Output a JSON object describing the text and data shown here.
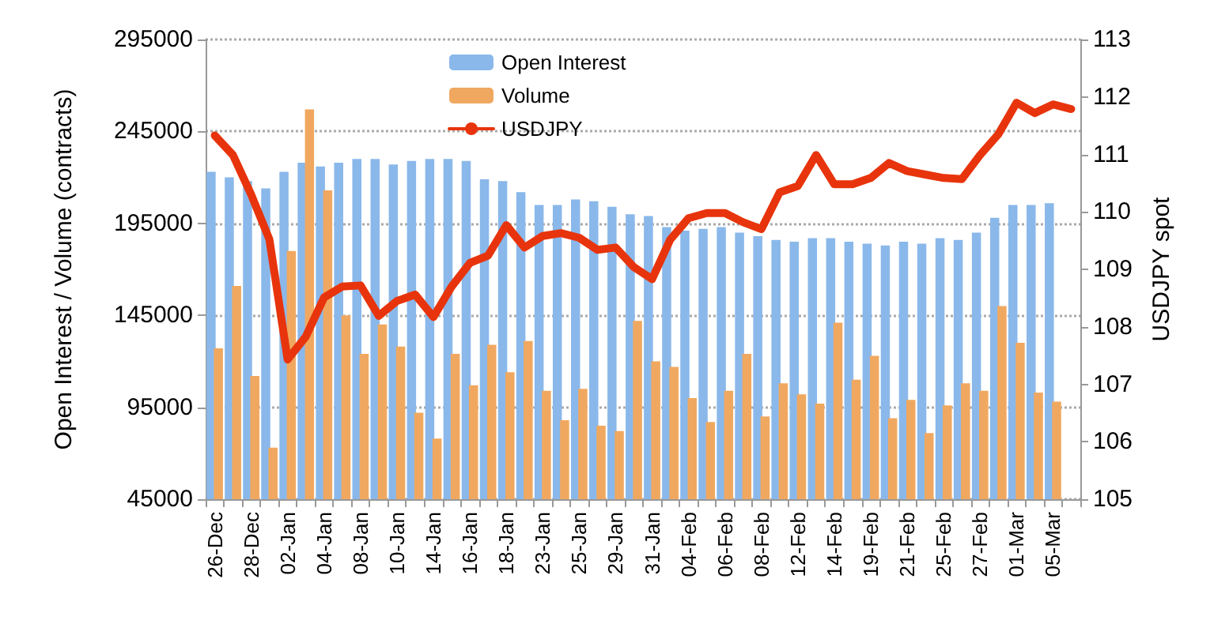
{
  "chart_data": {
    "type": "bar",
    "ylabel": "Open Interest / Volume (contracts)",
    "y2label": "USDJPY spot",
    "categories": [
      "26-Dec",
      null,
      "28-Dec",
      null,
      "02-Jan",
      null,
      "04-Jan",
      null,
      "08-Jan",
      null,
      "10-Jan",
      null,
      "14-Jan",
      null,
      "16-Jan",
      null,
      "18-Jan",
      null,
      "23-Jan",
      null,
      "25-Jan",
      null,
      "29-Jan",
      null,
      "31-Jan",
      null,
      "04-Feb",
      null,
      "06-Feb",
      null,
      "08-Feb",
      null,
      "12-Feb",
      null,
      "14-Feb",
      null,
      "19-Feb",
      null,
      "21-Feb",
      null,
      "25-Feb",
      null,
      "27-Feb",
      null,
      "01-Mar",
      null,
      "05-Mar",
      null
    ],
    "series": [
      {
        "name": "Open Interest",
        "color": "#8ab8ea",
        "values": [
          223000,
          220000,
          218000,
          214000,
          223000,
          228000,
          226000,
          228000,
          230000,
          230000,
          227000,
          229000,
          230000,
          230000,
          229000,
          219000,
          218000,
          212000,
          205000,
          205000,
          208000,
          207000,
          204000,
          200000,
          199000,
          193000,
          191000,
          192000,
          193000,
          190000,
          188000,
          186000,
          185000,
          187000,
          187000,
          185000,
          184000,
          183000,
          185000,
          184000,
          187000,
          186000,
          190000,
          198000,
          205000,
          205000,
          206000,
          null
        ]
      },
      {
        "name": "Volume",
        "color": "#f0a860",
        "values": [
          127000,
          161000,
          112000,
          73000,
          180000,
          257000,
          213000,
          145000,
          124000,
          140000,
          128000,
          92000,
          78000,
          124000,
          107000,
          129000,
          114000,
          131000,
          104000,
          88000,
          105000,
          85000,
          82000,
          142000,
          120000,
          117000,
          100000,
          87000,
          104000,
          124000,
          90000,
          108000,
          102000,
          97000,
          141000,
          110000,
          123000,
          89000,
          99000,
          81000,
          96000,
          108000,
          104000,
          150000,
          130000,
          103000,
          98000,
          null
        ]
      },
      {
        "name": "USDJPY",
        "type": "line",
        "axis": "y2",
        "color": "#e8340c",
        "values": [
          111.33,
          110.99,
          110.3,
          109.52,
          107.43,
          107.83,
          108.51,
          108.7,
          108.72,
          108.19,
          108.45,
          108.56,
          108.17,
          108.7,
          109.11,
          109.24,
          109.77,
          109.38,
          109.58,
          109.63,
          109.55,
          109.34,
          109.38,
          109.04,
          108.83,
          109.52,
          109.89,
          109.98,
          109.98,
          109.82,
          109.7,
          110.34,
          110.45,
          110.99,
          110.48,
          110.48,
          110.59,
          110.85,
          110.71,
          110.65,
          110.59,
          110.57,
          110.99,
          111.35,
          111.9,
          111.72,
          111.87,
          111.79
        ]
      }
    ],
    "ylim": [
      45000,
      295000
    ],
    "yticks": [
      45000,
      95000,
      145000,
      195000,
      245000,
      295000
    ],
    "y2lim": [
      105,
      113
    ],
    "y2ticks": [
      105,
      106,
      107,
      108,
      109,
      110,
      111,
      112,
      113
    ],
    "grid": "y",
    "legend": "top",
    "marker": "none",
    "line_style": "solid"
  }
}
